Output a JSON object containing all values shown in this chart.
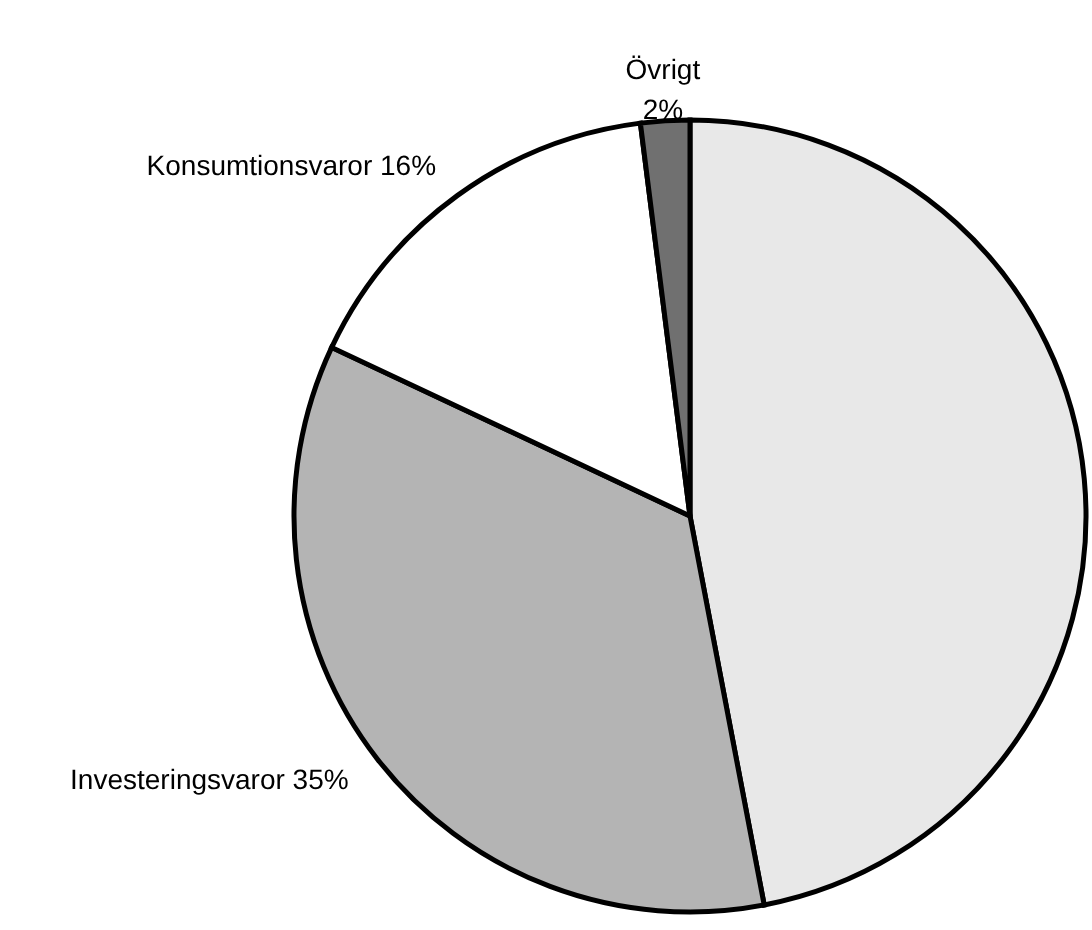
{
  "chart_data": {
    "type": "pie",
    "categories": [
      null,
      "Investeringsvaror",
      "Konsumtionsvaror",
      "Övrigt"
    ],
    "values": [
      47,
      35,
      16,
      2
    ],
    "value_labels": [
      null,
      "35%",
      "16%",
      "2%"
    ],
    "colors": [
      "#e8e8e8",
      "#b4b4b4",
      "#ffffff",
      "#707070"
    ]
  }
}
